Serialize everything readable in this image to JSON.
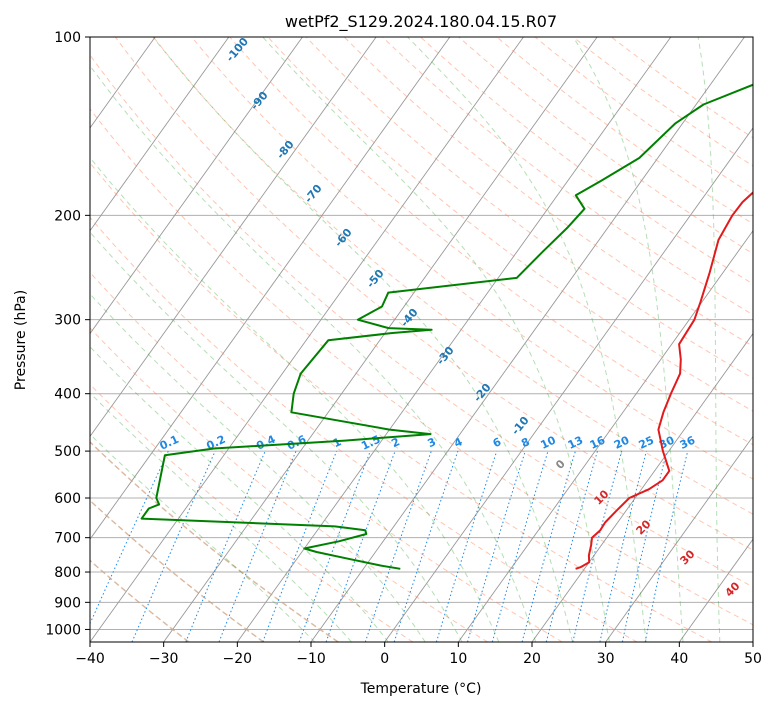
{
  "chart_data": {
    "type": "line",
    "subtype": "skew-t log-p",
    "title": "wetPf2_S129.2024.180.04.15.R07",
    "xlabel": "Temperature (°C)",
    "ylabel": "Pressure (hPa)",
    "xlim": [
      -40,
      50
    ],
    "ylim": [
      1050,
      100
    ],
    "y_scale": "log",
    "grid": true,
    "x_ticks": [
      -40,
      -30,
      -20,
      -10,
      0,
      10,
      20,
      30,
      40,
      50
    ],
    "x_tick_labels": [
      "−40",
      "−30",
      "−20",
      "−10",
      "0",
      "10",
      "20",
      "30",
      "40",
      "50"
    ],
    "y_ticks": [
      100,
      200,
      300,
      400,
      500,
      600,
      700,
      800,
      900,
      1000
    ],
    "y_tick_labels": [
      "100",
      "200",
      "300",
      "400",
      "500",
      "600",
      "700",
      "800",
      "900",
      "1000"
    ],
    "colors": {
      "temperature": "#e31a1c",
      "dewpoint": "#008000",
      "mixing_ratio": "#1e88e5",
      "dry_adiabat": "#ff7f50",
      "moist_adiabat": "#2ca02c",
      "isotherm": "#999999",
      "low_level_adiabat": "#c8a888",
      "adiabat_label_blue": "#1f77b4",
      "adiabat_label_red": "#d62728",
      "adiabat_label_gray": "#888888"
    },
    "series": [
      {
        "role": "temperature",
        "values": [
          [
            100,
            12.5
          ],
          [
            110,
            9.5
          ],
          [
            120,
            10
          ],
          [
            130,
            9.5
          ],
          [
            140,
            8
          ],
          [
            150,
            6.5
          ],
          [
            160,
            6
          ],
          [
            170,
            7
          ],
          [
            180,
            6.5
          ],
          [
            190,
            5.8
          ],
          [
            200,
            5.7
          ],
          [
            220,
            6.2
          ],
          [
            250,
            8.2
          ],
          [
            280,
            9.8
          ],
          [
            300,
            10.7
          ],
          [
            330,
            11
          ],
          [
            350,
            12.7
          ],
          [
            370,
            14
          ],
          [
            400,
            14.7
          ],
          [
            430,
            15.5
          ],
          [
            460,
            16.5
          ],
          [
            500,
            19.2
          ],
          [
            540,
            22
          ],
          [
            560,
            22
          ],
          [
            580,
            21
          ],
          [
            600,
            19.2
          ],
          [
            630,
            18.7
          ],
          [
            660,
            18.3
          ],
          [
            680,
            18.4
          ],
          [
            700,
            18
          ],
          [
            720,
            18.6
          ],
          [
            750,
            19.3
          ],
          [
            770,
            20
          ],
          [
            785,
            19.3
          ],
          [
            790,
            18.8
          ]
        ]
      },
      {
        "role": "dewpoint",
        "values": [
          [
            100,
            0.5
          ],
          [
            110,
            -1
          ],
          [
            120,
            -4
          ],
          [
            130,
            -9
          ],
          [
            140,
            -11
          ],
          [
            160,
            -12.5
          ],
          [
            175,
            -15.5
          ],
          [
            185,
            -17.5
          ],
          [
            195,
            -15
          ],
          [
            210,
            -15.5
          ],
          [
            230,
            -16.5
          ],
          [
            255,
            -17.5
          ],
          [
            270,
            -33.5
          ],
          [
            285,
            -33
          ],
          [
            300,
            -35
          ],
          [
            310,
            -30
          ],
          [
            312,
            -24
          ],
          [
            316,
            -29
          ],
          [
            325,
            -37
          ],
          [
            370,
            -37.5
          ],
          [
            400,
            -36.5
          ],
          [
            430,
            -35
          ],
          [
            460,
            -20
          ],
          [
            468,
            -14
          ],
          [
            480,
            -25
          ],
          [
            495,
            -42
          ],
          [
            508,
            -48
          ],
          [
            600,
            -45
          ],
          [
            615,
            -44
          ],
          [
            625,
            -45
          ],
          [
            650,
            -45
          ],
          [
            670,
            -18
          ],
          [
            680,
            -13.5
          ],
          [
            690,
            -13
          ],
          [
            710,
            -16
          ],
          [
            730,
            -20
          ],
          [
            740,
            -18
          ],
          [
            760,
            -13
          ],
          [
            780,
            -8
          ],
          [
            790,
            -5
          ]
        ]
      }
    ],
    "mixing_ratio_labels": [
      "0.1",
      "0.2",
      "0.4",
      "0.6",
      "1",
      "1.5",
      "2",
      "3",
      "4",
      "6",
      "8",
      "10",
      "13",
      "16",
      "20",
      "25",
      "30",
      "36"
    ],
    "moist_adiabat_labels_blue": [
      "-100",
      "-90",
      "-80",
      "-70",
      "-60",
      "-50",
      "-40",
      "-30",
      "-20",
      "-10"
    ],
    "moist_adiabat_label_gray": "0",
    "moist_adiabat_labels_red": [
      "10",
      "20",
      "30",
      "40"
    ]
  }
}
